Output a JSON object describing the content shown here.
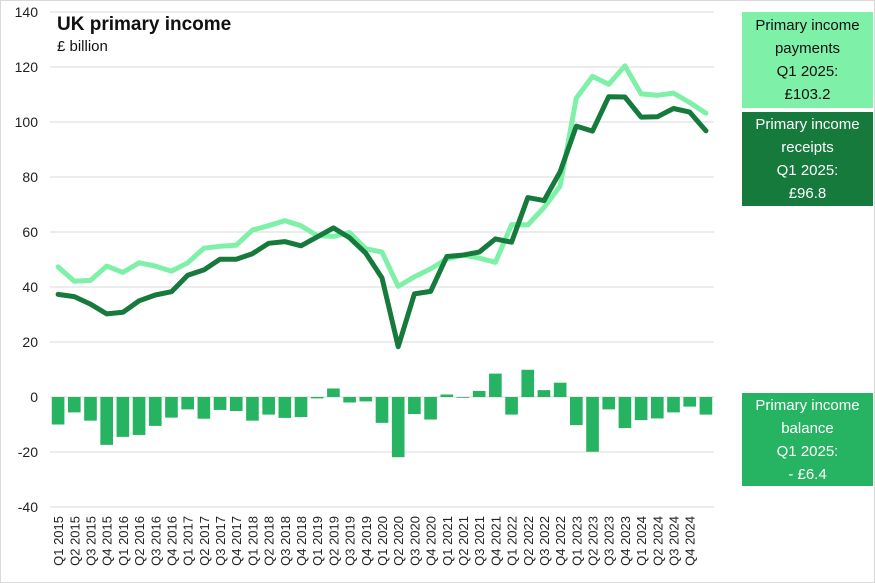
{
  "chart_data": {
    "type": "line",
    "title": "UK primary income",
    "subtitle": "£ billion",
    "ylim": [
      -40,
      140
    ],
    "yticks": [
      -40,
      -20,
      0,
      20,
      40,
      60,
      80,
      100,
      120,
      140
    ],
    "categories": [
      "Q1 2015",
      "Q2 2015",
      "Q3 2015",
      "Q4 2015",
      "Q1 2016",
      "Q2 2016",
      "Q3 2016",
      "Q4 2016",
      "Q1 2017",
      "Q2 2017",
      "Q3 2017",
      "Q4 2017",
      "Q1 2018",
      "Q2 2018",
      "Q3 2018",
      "Q4 2018",
      "Q1 2019",
      "Q2 2019",
      "Q3 2019",
      "Q4 2019",
      "Q1 2020",
      "Q2 2020",
      "Q3 2020",
      "Q4 2020",
      "Q1 2021",
      "Q2 2021",
      "Q3 2021",
      "Q4 2021",
      "Q1 2022",
      "Q2 2022",
      "Q3 2022",
      "Q4 2022",
      "Q1 2023",
      "Q2 2023",
      "Q3 2023",
      "Q4 2023",
      "Q1 2024",
      "Q2 2024",
      "Q3 2024",
      "Q4 2024",
      "Q1 2025"
    ],
    "xtick_labels": [
      "Q1 2015",
      "Q2 2015",
      "Q3 2015",
      "Q4 2015",
      "Q1 2016",
      "Q2 2016",
      "Q3 2016",
      "Q4 2016",
      "Q1 2017",
      "Q2 2017",
      "Q3 2017",
      "Q4 2017",
      "Q1 2018",
      "Q2 2018",
      "Q3 2018",
      "Q4 2018",
      "Q1 2019",
      "Q2 2019",
      "Q3 2019",
      "Q4 2019",
      "Q1 2020",
      "Q2 2020",
      "Q3 2020",
      "Q4 2020",
      "Q1 2021",
      "Q2 2021",
      "Q3 2021",
      "Q4 2021",
      "Q1 2022",
      "Q2 2022",
      "Q3 2022",
      "Q4 2022",
      "Q1 2023",
      "Q2 2023",
      "Q3 2023",
      "Q4 2023",
      "Q1 2024",
      "Q2 2024",
      "Q3 2024",
      "Q4 2024"
    ],
    "series": [
      {
        "kind": "line",
        "color": "#7ef0a8",
        "values": [
          47.3,
          42.1,
          42.4,
          47.6,
          45.3,
          48.8,
          47.6,
          45.8,
          48.8,
          54.1,
          54.8,
          55.2,
          60.7,
          62.3,
          64.1,
          62.3,
          58.7,
          58.4,
          59.8,
          53.9,
          52.7,
          40.2,
          43.7,
          46.6,
          50.2,
          51.6,
          50.5,
          49.0,
          62.7,
          62.6,
          68.9,
          76.7,
          108.7,
          116.6,
          113.7,
          120.4,
          110.2,
          109.7,
          110.5,
          107.1,
          103.2
        ]
      },
      {
        "kind": "line",
        "color": "#157a3c",
        "values": [
          37.3,
          36.5,
          33.8,
          30.2,
          30.8,
          35.0,
          37.1,
          38.3,
          44.3,
          46.2,
          50.1,
          50.1,
          52.1,
          55.9,
          56.5,
          55.0,
          58.2,
          61.5,
          57.9,
          52.3,
          43.3,
          18.3,
          37.5,
          38.4,
          51.1,
          51.6,
          52.7,
          57.5,
          56.3,
          72.5,
          71.4,
          81.9,
          98.5,
          96.7,
          109.2,
          109.1,
          101.8,
          101.9,
          104.9,
          103.6,
          96.8
        ]
      },
      {
        "kind": "bar",
        "color": "#26b362",
        "values": [
          -10.0,
          -5.6,
          -8.6,
          -17.4,
          -14.5,
          -13.8,
          -10.5,
          -7.5,
          -4.5,
          -7.9,
          -4.7,
          -5.1,
          -8.6,
          -6.4,
          -7.6,
          -7.3,
          -0.5,
          3.1,
          -2.0,
          -1.6,
          -9.4,
          -21.9,
          -6.2,
          -8.2,
          0.9,
          0.0,
          2.2,
          8.5,
          -6.4,
          9.9,
          2.5,
          5.2,
          -10.2,
          -19.9,
          -4.5,
          -11.3,
          -8.4,
          -7.8,
          -5.6,
          -3.5,
          -6.4
        ]
      }
    ],
    "callouts": [
      {
        "lines": [
          "Primary income",
          "payments",
          "Q1 2025:",
          "£103.2"
        ],
        "bg": "#7ef0a8",
        "fg": "#111111"
      },
      {
        "lines": [
          "Primary income",
          "receipts",
          "Q1 2025:",
          "£96.8"
        ],
        "bg": "#157a3c",
        "fg": "#ffffff"
      },
      {
        "lines": [
          "Primary income",
          "balance",
          "Q1 2025:",
          "- £6.4"
        ],
        "bg": "#26b362",
        "fg": "#ffffff"
      }
    ],
    "grid": "horizontal"
  }
}
